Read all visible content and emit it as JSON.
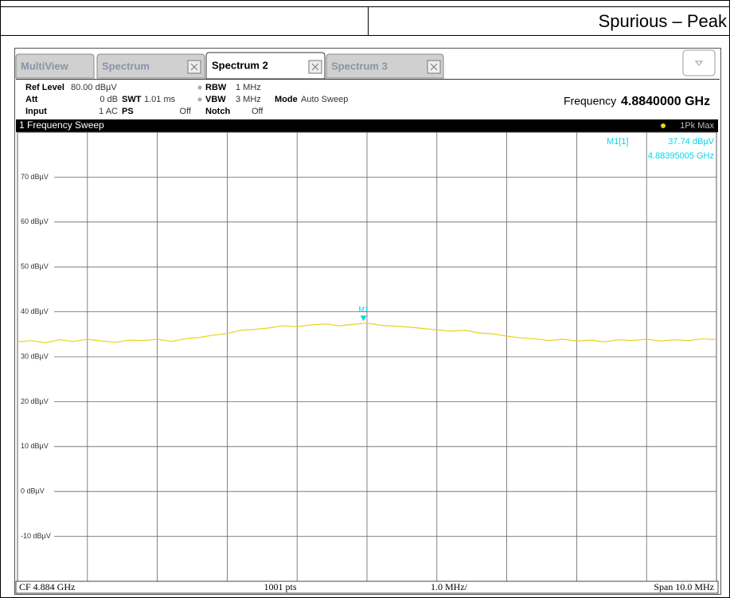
{
  "header": {
    "title": "Spurious – Peak"
  },
  "tabs": [
    "MultiView",
    "Spectrum",
    "Spectrum 2",
    "Spectrum 3"
  ],
  "settings": {
    "ref_level": {
      "label": "Ref Level",
      "value": "80.00 dBµV"
    },
    "att": {
      "label": "Att",
      "value": "0 dB"
    },
    "input": {
      "label": "Input",
      "value": "1 AC"
    },
    "swt": {
      "label": "SWT",
      "value": "1.01 ms"
    },
    "ps": {
      "label": "PS",
      "value": "Off"
    },
    "rbw": {
      "label": "RBW",
      "value": "1 MHz"
    },
    "vbw": {
      "label": "VBW",
      "value": "3 MHz"
    },
    "notch": {
      "label": "Notch",
      "value": "Off"
    },
    "mode": {
      "label": "Mode",
      "value": "Auto Sweep"
    },
    "frequency": {
      "label": "Frequency",
      "value": "4.8840000 GHz"
    }
  },
  "footer": {
    "center_freq": "CF 4.884 GHz",
    "points": "1001 pts",
    "per_div": "1.0 MHz/",
    "span": "Span 10.0 MHz"
  },
  "chart_data": {
    "type": "line",
    "title": "1 Frequency Sweep",
    "series": [
      {
        "name": "1Pk Max",
        "color": "#e8d21e",
        "x": [
          4.879,
          4.8792,
          4.8794,
          4.8796,
          4.8798,
          4.88,
          4.8802,
          4.8804,
          4.8806,
          4.8808,
          4.881,
          4.8812,
          4.8814,
          4.8816,
          4.8818,
          4.882,
          4.8822,
          4.8824,
          4.8826,
          4.8828,
          4.883,
          4.8832,
          4.8834,
          4.8836,
          4.8838,
          4.884,
          4.8842,
          4.8844,
          4.8846,
          4.8848,
          4.885,
          4.8852,
          4.8854,
          4.8856,
          4.8858,
          4.886,
          4.8862,
          4.8864,
          4.8866,
          4.8868,
          4.887,
          4.8872,
          4.8874,
          4.8876,
          4.8878,
          4.888,
          4.8882,
          4.8884,
          4.8886,
          4.8888,
          4.889
        ],
        "values": [
          33.3,
          33.6,
          33.1,
          33.8,
          33.4,
          33.9,
          33.5,
          33.2,
          33.7,
          33.6,
          33.9,
          33.4,
          34.0,
          34.3,
          34.8,
          35.2,
          35.9,
          36.1,
          36.4,
          36.9,
          36.7,
          37.1,
          37.3,
          36.9,
          37.2,
          37.5,
          37.0,
          36.8,
          36.6,
          36.3,
          36.0,
          35.7,
          35.9,
          35.3,
          35.1,
          34.6,
          34.2,
          34.0,
          33.6,
          33.9,
          33.5,
          33.7,
          33.3,
          33.8,
          33.6,
          33.9,
          33.5,
          33.8,
          33.6,
          34.0,
          33.8
        ]
      }
    ],
    "xlim": [
      4.879,
      4.889
    ],
    "xticks": [
      4.879,
      4.88,
      4.881,
      4.882,
      4.883,
      4.884,
      4.885,
      4.886,
      4.887,
      4.888,
      4.889
    ],
    "ylim": [
      -20,
      80
    ],
    "yticks": [
      {
        "value": 70,
        "label": "70 dBµV"
      },
      {
        "value": 60,
        "label": "60 dBµV"
      },
      {
        "value": 50,
        "label": "50 dBµV"
      },
      {
        "value": 40,
        "label": "40 dBµV"
      },
      {
        "value": 30,
        "label": "30 dBµV"
      },
      {
        "value": 20,
        "label": "20 dBµV"
      },
      {
        "value": 10,
        "label": "10 dBµV"
      },
      {
        "value": 0,
        "label": "0 dBµV"
      },
      {
        "value": -10,
        "label": "-10 dBµV"
      }
    ],
    "grid": true,
    "marker": {
      "label": "M1",
      "name": "M1[1]",
      "value": 37.74,
      "value_label": "37.74 dBµV",
      "x": 4.88395005,
      "x_label": "4.88395005 GHz",
      "color": "#00d8e8"
    }
  }
}
